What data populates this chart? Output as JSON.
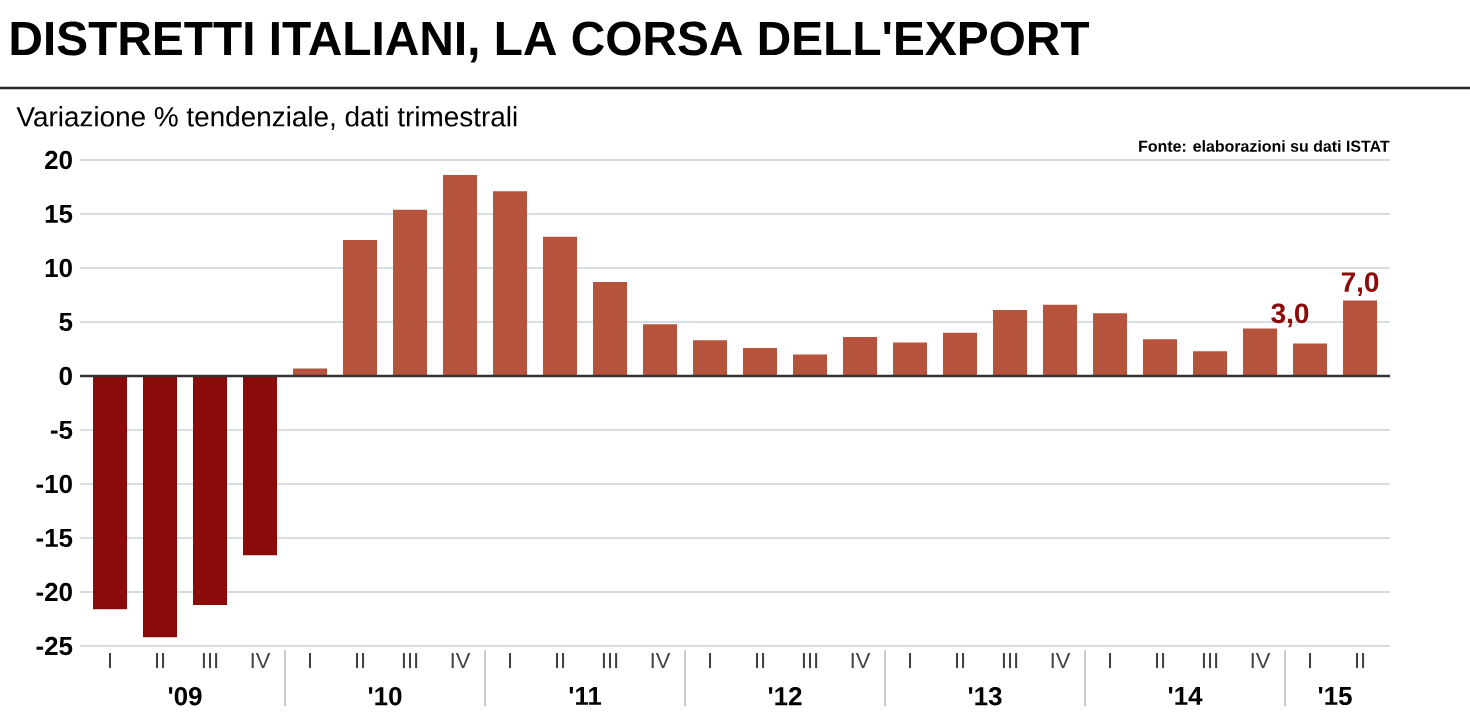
{
  "chart_data": {
    "type": "bar",
    "title": "DISTRETTI ITALIANI, LA CORSA DELL'EXPORT",
    "subtitle": "Variazione % tendenziale, dati trimestrali",
    "annotations": [
      "Fonte: elaborazioni su dati ISTAT",
      "'09",
      "'10",
      "'11",
      "'12",
      "'13",
      "'14",
      "'15"
    ],
    "categories": [
      "I",
      "II",
      "III",
      "IV",
      "I",
      "II",
      "III",
      "IV",
      "I",
      "II",
      "III",
      "IV",
      "I",
      "II",
      "III",
      "IV",
      "I",
      "II",
      "III",
      "IV",
      "I",
      "II",
      "III",
      "IV",
      "I",
      "II"
    ],
    "values": [
      -21.6,
      -24.2,
      -21.2,
      -16.6,
      0.7,
      12.6,
      15.4,
      18.6,
      17.1,
      12.9,
      8.7,
      4.8,
      3.3,
      2.6,
      2.0,
      3.6,
      3.1,
      4.0,
      6.1,
      6.6,
      5.8,
      3.4,
      2.3,
      4.4,
      3.0,
      7.0
    ],
    "colors": [
      "#8b0a0a",
      "#8b0a0a",
      "#8b0a0a",
      "#8b0a0a",
      "#b5533c",
      "#b5533c",
      "#b5533c",
      "#b5533c",
      "#b5533c",
      "#b5533c",
      "#b5533c",
      "#b5533c",
      "#b5533c",
      "#b5533c",
      "#b5533c",
      "#b5533c",
      "#b5533c",
      "#b5533c",
      "#b5533c",
      "#b5533c",
      "#b5533c",
      "#b5533c",
      "#b5533c",
      "#b5533c",
      "#b5533c",
      "#b5533c"
    ],
    "value_labels": [
      null,
      null,
      null,
      null,
      null,
      null,
      null,
      null,
      null,
      null,
      null,
      null,
      null,
      null,
      null,
      null,
      null,
      null,
      null,
      null,
      null,
      null,
      null,
      null,
      "3,0",
      "7,0"
    ],
    "ylim": [
      -25,
      20
    ],
    "yticks": [
      -25,
      -20,
      -15,
      -10,
      -5,
      0,
      5,
      10,
      15,
      20
    ],
    "grid": "y"
  }
}
